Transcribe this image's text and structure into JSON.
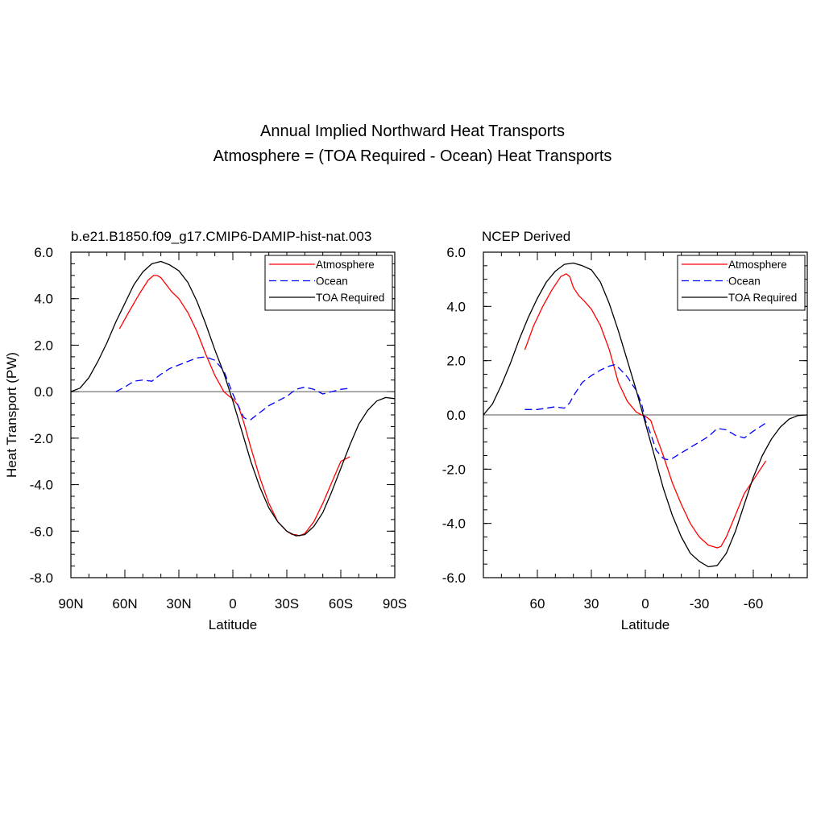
{
  "figure": {
    "title_line1": "Annual Implied Northward Heat Transports",
    "title_line2": "Atmosphere = (TOA Required - Ocean) Heat Transports"
  },
  "chart_data": [
    {
      "type": "line",
      "title": "b.e21.B1850.f09_g17.CMIP6-DAMIP-hist-nat.003",
      "xlabel": "Latitude",
      "ylabel": "Heat Transport (PW)",
      "xlim": [
        90,
        -90
      ],
      "ylim": [
        -8,
        6
      ],
      "xticks": [
        90,
        60,
        30,
        0,
        -30,
        -60,
        -90
      ],
      "xtick_labels": [
        "90N",
        "60N",
        "30N",
        "0",
        "30S",
        "60S",
        "90S"
      ],
      "yticks": [
        -8,
        -6,
        -4,
        -2,
        0,
        2,
        4,
        6
      ],
      "ytick_labels": [
        "-8.0",
        "-6.0",
        "-4.0",
        "-2.0",
        "0.0",
        "2.0",
        "4.0",
        "6.0"
      ],
      "zero_line": true,
      "legend": {
        "position": "top-right",
        "entries": [
          "Atmosphere",
          "Ocean",
          "TOA Required"
        ]
      },
      "series": [
        {
          "name": "Atmosphere",
          "color": "#ff0000",
          "dash": "solid",
          "x": [
            63,
            58,
            52,
            47,
            44,
            42,
            40,
            37,
            34,
            30,
            25,
            20,
            15,
            10,
            5,
            2,
            0,
            -3,
            -6,
            -10,
            -15,
            -20,
            -25,
            -30,
            -33,
            -35,
            -37,
            -40,
            -45,
            -50,
            -55,
            -60,
            -65
          ],
          "y": [
            2.7,
            3.4,
            4.2,
            4.8,
            5.0,
            5.0,
            4.9,
            4.6,
            4.3,
            4.0,
            3.4,
            2.6,
            1.6,
            0.7,
            0.0,
            -0.2,
            -0.3,
            -0.6,
            -1.3,
            -2.4,
            -3.7,
            -4.8,
            -5.6,
            -6.0,
            -6.15,
            -6.15,
            -6.2,
            -6.1,
            -5.6,
            -4.8,
            -3.9,
            -3.0,
            -2.8
          ]
        },
        {
          "name": "Ocean",
          "color": "#0000ff",
          "dash": "dashed",
          "x": [
            65,
            60,
            55,
            50,
            45,
            40,
            35,
            30,
            25,
            20,
            15,
            10,
            5,
            2,
            0,
            -3,
            -6,
            -8,
            -10,
            -15,
            -20,
            -25,
            -30,
            -35,
            -40,
            -45,
            -50,
            -55,
            -60,
            -65
          ],
          "y": [
            0.0,
            0.2,
            0.45,
            0.5,
            0.45,
            0.75,
            1.0,
            1.15,
            1.3,
            1.45,
            1.5,
            1.35,
            0.9,
            0.3,
            -0.1,
            -0.6,
            -1.1,
            -1.2,
            -1.2,
            -0.9,
            -0.6,
            -0.4,
            -0.2,
            0.1,
            0.2,
            0.1,
            -0.1,
            0.0,
            0.1,
            0.15
          ]
        },
        {
          "name": "TOA Required",
          "color": "#000000",
          "dash": "solid",
          "x": [
            90,
            85,
            80,
            75,
            70,
            65,
            60,
            55,
            50,
            45,
            40,
            35,
            30,
            25,
            20,
            15,
            10,
            5,
            0,
            -5,
            -10,
            -15,
            -20,
            -25,
            -30,
            -35,
            -40,
            -45,
            -50,
            -55,
            -60,
            -65,
            -70,
            -75,
            -80,
            -85,
            -90
          ],
          "y": [
            0.0,
            0.15,
            0.6,
            1.3,
            2.1,
            3.0,
            3.8,
            4.6,
            5.15,
            5.5,
            5.6,
            5.45,
            5.2,
            4.7,
            3.9,
            2.9,
            1.8,
            0.8,
            -0.4,
            -1.7,
            -3.0,
            -4.1,
            -5.0,
            -5.6,
            -6.0,
            -6.2,
            -6.15,
            -5.8,
            -5.2,
            -4.3,
            -3.3,
            -2.3,
            -1.4,
            -0.8,
            -0.4,
            -0.25,
            -0.3
          ]
        }
      ]
    },
    {
      "type": "line",
      "title": "NCEP Derived",
      "xlabel": "Latitude",
      "ylabel": "",
      "xlim": [
        90,
        -90
      ],
      "ylim": [
        -6,
        6
      ],
      "xticks": [
        60,
        30,
        0,
        -30,
        -60
      ],
      "xtick_labels": [
        "60",
        "30",
        "0",
        "-30",
        "-60"
      ],
      "yticks": [
        -6,
        -4,
        -2,
        0,
        2,
        4,
        6
      ],
      "ytick_labels": [
        "-6.0",
        "-4.0",
        "-2.0",
        "0.0",
        "2.0",
        "4.0",
        "6.0"
      ],
      "zero_line": true,
      "legend": {
        "position": "top-right",
        "entries": [
          "Atmosphere",
          "Ocean",
          "TOA Required"
        ]
      },
      "series": [
        {
          "name": "Atmosphere",
          "color": "#ff0000",
          "dash": "solid",
          "x": [
            67,
            62,
            57,
            52,
            47,
            44,
            42,
            40,
            37,
            34,
            30,
            25,
            20,
            15,
            10,
            5,
            2,
            0,
            -3,
            -5,
            -10,
            -15,
            -20,
            -25,
            -30,
            -35,
            -40,
            -42,
            -45,
            -50,
            -55,
            -60,
            -67
          ],
          "y": [
            2.4,
            3.3,
            4.0,
            4.6,
            5.1,
            5.2,
            5.1,
            4.7,
            4.4,
            4.2,
            3.9,
            3.3,
            2.4,
            1.2,
            0.5,
            0.1,
            0.0,
            -0.05,
            -0.2,
            -0.6,
            -1.5,
            -2.5,
            -3.3,
            -4.0,
            -4.5,
            -4.8,
            -4.9,
            -4.85,
            -4.5,
            -3.7,
            -2.9,
            -2.4,
            -1.7
          ]
        },
        {
          "name": "Ocean",
          "color": "#0000ff",
          "dash": "dashed",
          "x": [
            67,
            60,
            55,
            50,
            45,
            42,
            40,
            37,
            35,
            30,
            25,
            20,
            17,
            15,
            10,
            5,
            2,
            0,
            -3,
            -6,
            -10,
            -12,
            -15,
            -20,
            -25,
            -30,
            -35,
            -40,
            -45,
            -50,
            -55,
            -60,
            -67
          ],
          "y": [
            0.2,
            0.2,
            0.25,
            0.3,
            0.25,
            0.45,
            0.7,
            1.0,
            1.2,
            1.45,
            1.65,
            1.8,
            1.85,
            1.75,
            1.4,
            0.9,
            0.4,
            -0.2,
            -0.7,
            -1.3,
            -1.6,
            -1.65,
            -1.6,
            -1.4,
            -1.2,
            -1.0,
            -0.8,
            -0.5,
            -0.55,
            -0.75,
            -0.85,
            -0.6,
            -0.3
          ]
        },
        {
          "name": "TOA Required",
          "color": "#000000",
          "dash": "solid",
          "x": [
            90,
            85,
            80,
            75,
            70,
            65,
            60,
            55,
            50,
            45,
            40,
            35,
            30,
            25,
            20,
            15,
            10,
            5,
            0,
            -5,
            -10,
            -15,
            -20,
            -25,
            -30,
            -35,
            -40,
            -45,
            -50,
            -55,
            -60,
            -65,
            -70,
            -75,
            -80,
            -85,
            -90
          ],
          "y": [
            0.0,
            0.4,
            1.1,
            1.9,
            2.8,
            3.6,
            4.3,
            4.9,
            5.3,
            5.55,
            5.6,
            5.5,
            5.35,
            4.9,
            4.1,
            3.1,
            2.0,
            0.9,
            -0.3,
            -1.5,
            -2.7,
            -3.7,
            -4.5,
            -5.1,
            -5.4,
            -5.6,
            -5.55,
            -5.1,
            -4.3,
            -3.3,
            -2.3,
            -1.5,
            -0.9,
            -0.45,
            -0.15,
            -0.02,
            0.0
          ]
        }
      ]
    }
  ]
}
